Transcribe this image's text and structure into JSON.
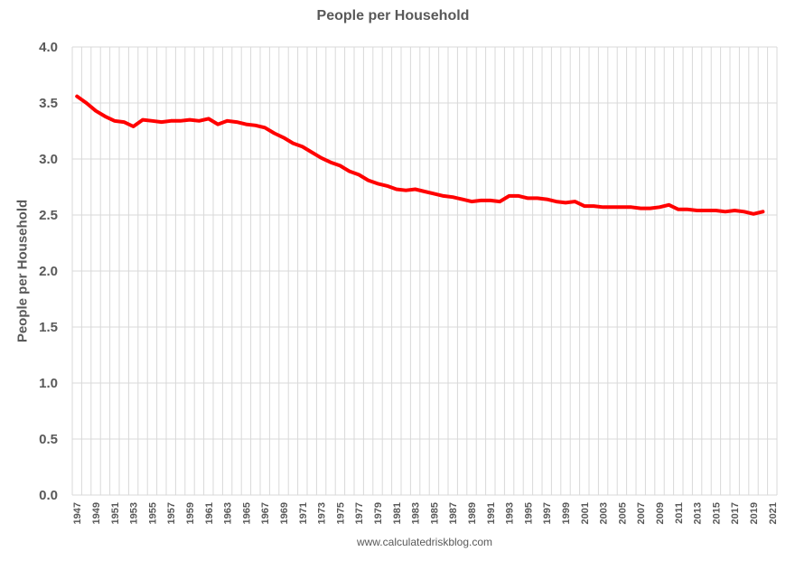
{
  "chart_data": {
    "type": "line",
    "title": "People per Household",
    "xlabel": "",
    "ylabel": "People per Household",
    "ylim": [
      0,
      4.0
    ],
    "yticks": [
      "0.0",
      "0.5",
      "1.0",
      "1.5",
      "2.0",
      "2.5",
      "3.0",
      "3.5",
      "4.0"
    ],
    "grid": true,
    "legend": null,
    "line_color": "#ff0000",
    "source_note": "www.calculatedriskblog.com",
    "x_categories_start": 1947,
    "x_categories_end": 2021,
    "x_tick_labels": [
      "1947",
      "1949",
      "1951",
      "1953",
      "1955",
      "1957",
      "1959",
      "1961",
      "1963",
      "1965",
      "1967",
      "1969",
      "1971",
      "1973",
      "1975",
      "1977",
      "1979",
      "1981",
      "1983",
      "1985",
      "1987",
      "1989",
      "1991",
      "1993",
      "1995",
      "1997",
      "1999",
      "2001",
      "2003",
      "2005",
      "2007",
      "2009",
      "2011",
      "2013",
      "2015",
      "2017",
      "2019",
      "2021"
    ],
    "series": [
      {
        "name": "People per Household",
        "x": [
          1947,
          1948,
          1949,
          1950,
          1951,
          1952,
          1953,
          1954,
          1955,
          1956,
          1957,
          1958,
          1959,
          1960,
          1961,
          1962,
          1963,
          1964,
          1965,
          1966,
          1967,
          1968,
          1969,
          1970,
          1971,
          1972,
          1973,
          1974,
          1975,
          1976,
          1977,
          1978,
          1979,
          1980,
          1981,
          1982,
          1983,
          1984,
          1985,
          1986,
          1987,
          1988,
          1989,
          1990,
          1991,
          1992,
          1993,
          1994,
          1995,
          1996,
          1997,
          1998,
          1999,
          2000,
          2001,
          2002,
          2003,
          2004,
          2005,
          2006,
          2007,
          2008,
          2009,
          2010,
          2011,
          2012,
          2013,
          2014,
          2015,
          2016,
          2017,
          2018,
          2019,
          2020
        ],
        "values": [
          3.56,
          3.5,
          3.43,
          3.38,
          3.34,
          3.33,
          3.29,
          3.35,
          3.34,
          3.33,
          3.34,
          3.34,
          3.35,
          3.34,
          3.36,
          3.31,
          3.34,
          3.33,
          3.31,
          3.3,
          3.28,
          3.23,
          3.19,
          3.14,
          3.11,
          3.06,
          3.01,
          2.97,
          2.94,
          2.89,
          2.86,
          2.81,
          2.78,
          2.76,
          2.73,
          2.72,
          2.73,
          2.71,
          2.69,
          2.67,
          2.66,
          2.64,
          2.62,
          2.63,
          2.63,
          2.62,
          2.67,
          2.67,
          2.65,
          2.65,
          2.64,
          2.62,
          2.61,
          2.62,
          2.58,
          2.58,
          2.57,
          2.57,
          2.57,
          2.57,
          2.56,
          2.56,
          2.57,
          2.59,
          2.55,
          2.55,
          2.54,
          2.54,
          2.54,
          2.53,
          2.54,
          2.53,
          2.51,
          2.53
        ]
      }
    ]
  }
}
